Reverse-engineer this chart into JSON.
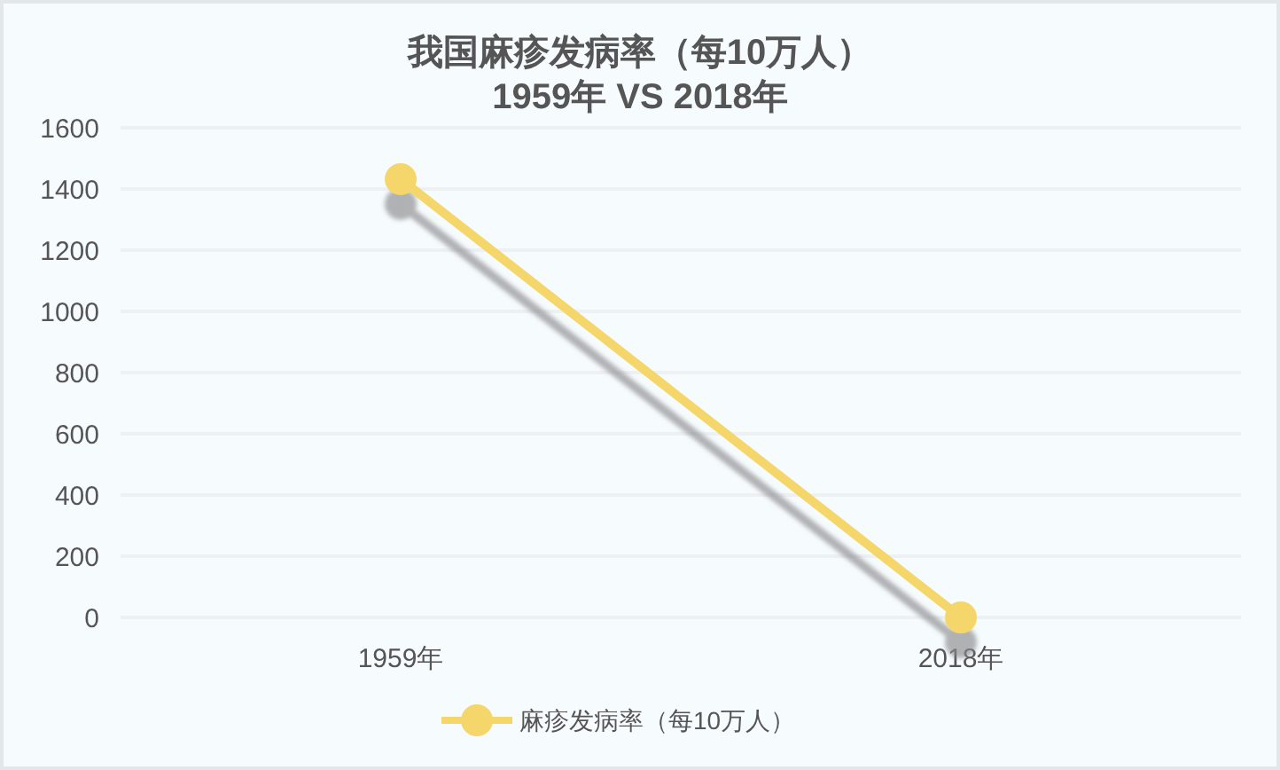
{
  "chart_data": {
    "type": "line",
    "title": "我国麻疹发病率（每10万人）\n1959年 VS 2018年",
    "categories": [
      "1959年",
      "2018年"
    ],
    "series": [
      {
        "name": "麻疹发病率（每10万人）",
        "color": "#f5d66a",
        "values": [
          1432,
          0
        ]
      }
    ],
    "ylim": [
      0,
      1600
    ],
    "yticks": [
      0,
      200,
      400,
      600,
      800,
      1000,
      1200,
      1400,
      1600
    ],
    "grid": "y",
    "legend": "bottom",
    "marker": "circle",
    "line_style": "solid"
  }
}
